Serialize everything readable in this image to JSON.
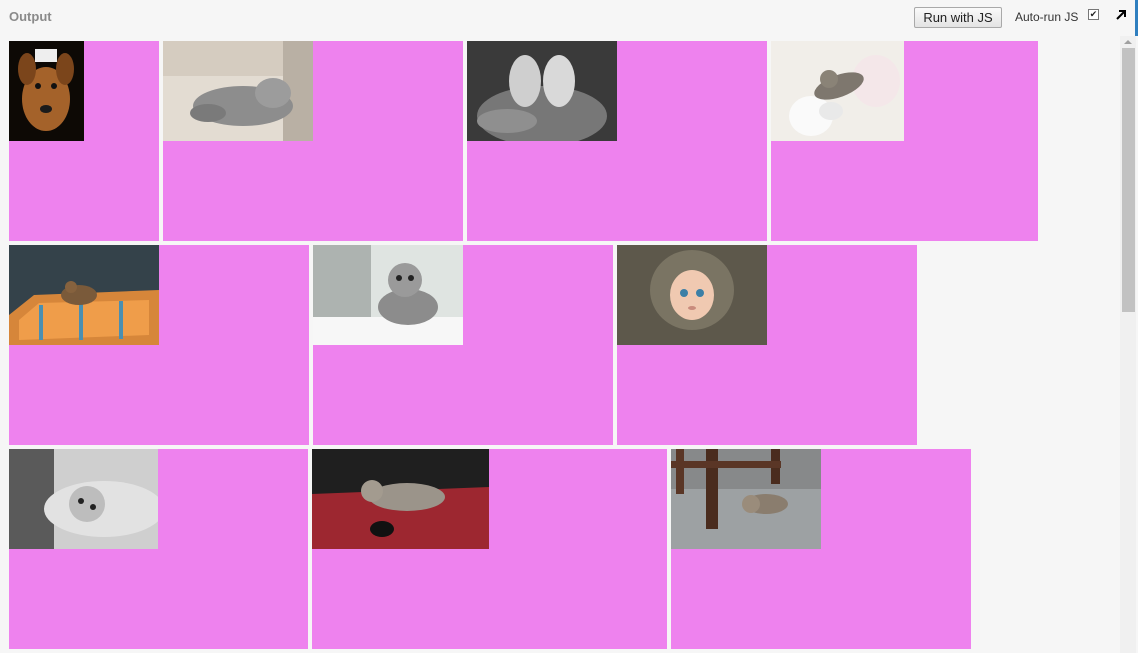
{
  "panel": {
    "title": "Output",
    "run_label": "Run with JS",
    "autorun_label": "Auto-run JS",
    "autorun_checked": "✔"
  },
  "colors": {
    "tile_background": "#ee82ee",
    "page_background": "#f6f6f6"
  },
  "gallery": {
    "photos": [
      "dog with sign",
      "grey cat lying on floor",
      "baby feet in hands",
      "kitten jumping",
      "kitten on striped cushion",
      "silver tabby kitten by window",
      "child in burlap hood",
      "black and white cat lying down",
      "tabby cat on red carpet",
      "kitten under chair"
    ]
  }
}
